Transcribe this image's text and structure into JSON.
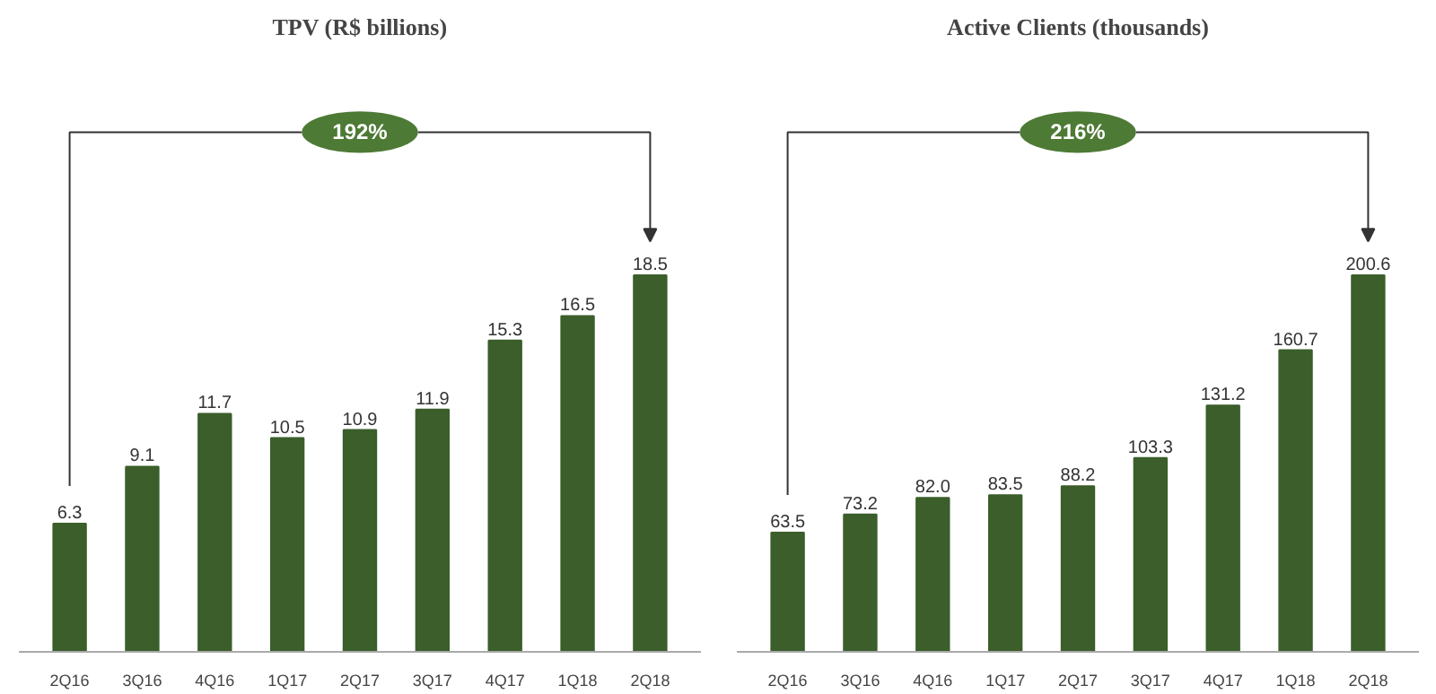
{
  "chart_data": [
    {
      "type": "bar",
      "title": "TPV (R$ billions)",
      "categories": [
        "2Q16",
        "3Q16",
        "4Q16",
        "1Q17",
        "2Q17",
        "3Q17",
        "4Q17",
        "1Q18",
        "2Q18"
      ],
      "values": [
        6.3,
        9.1,
        11.7,
        10.5,
        10.9,
        11.9,
        15.3,
        16.5,
        18.5
      ],
      "color": "#3b5e2b",
      "data_labels": true,
      "annotations": [
        "192%"
      ]
    },
    {
      "type": "bar",
      "title": "Active Clients (thousands)",
      "categories": [
        "2Q16",
        "3Q16",
        "4Q16",
        "1Q17",
        "2Q17",
        "3Q17",
        "4Q17",
        "1Q18",
        "2Q18"
      ],
      "values": [
        63.5,
        73.2,
        82.0,
        83.5,
        88.2,
        103.3,
        131.2,
        160.7,
        200.6
      ],
      "value_labels": [
        "63.5",
        "73.2",
        "82.0",
        "83.5",
        "88.2",
        "103.3",
        "131.2",
        "160.7",
        "200.6"
      ],
      "color": "#3b5e2b",
      "annotations": [
        "216%"
      ]
    }
  ]
}
